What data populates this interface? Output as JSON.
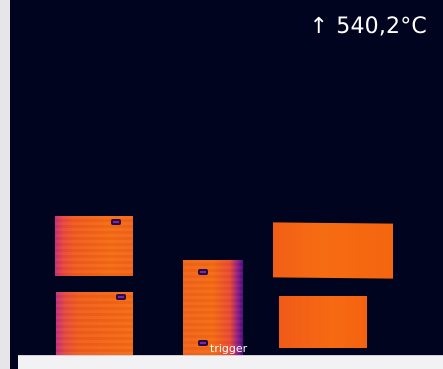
{
  "thermal_view": {
    "max_temperature": "540,2°C",
    "max_arrow_icon": "arrow-up-icon",
    "trigger_label": "trigger"
  },
  "colors": {
    "background": "#00041f",
    "hot": "#f66a12",
    "cool_edge": "#c72d7a",
    "text": "#ffffff"
  }
}
